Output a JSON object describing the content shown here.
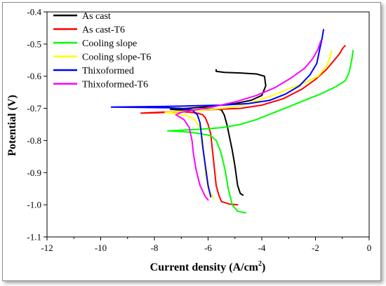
{
  "chart_data": {
    "type": "line",
    "title": "",
    "xlabel": "Current density (A/cm",
    "xlabel_sup": "2",
    "xlabel_close": ")",
    "ylabel": "Potential (V)",
    "xlim": [
      -12,
      0
    ],
    "ylim": [
      -1.1,
      -0.4
    ],
    "xticks": [
      -12,
      -10,
      -8,
      -6,
      -4,
      -2,
      0
    ],
    "xtick_labels": [
      "-12",
      "-10",
      "-8",
      "-6",
      "-4",
      "-2",
      "0"
    ],
    "yticks": [
      -1.1,
      -1.0,
      -0.9,
      -0.8,
      -0.7,
      -0.6,
      -0.5,
      -0.4
    ],
    "ytick_labels": [
      "-1.1",
      "-1.0",
      "-0.9",
      "-0.8",
      "-0.7",
      "-0.6",
      "-0.5",
      "-0.4"
    ],
    "grid": false,
    "legend_position": "top-left",
    "series": [
      {
        "name": "As cast",
        "color": "#000000",
        "x": [
          -4.7,
          -4.8,
          -4.9,
          -5.0,
          -5.1,
          -5.2,
          -5.3,
          -5.4,
          -5.5,
          -5.6,
          -5.8,
          -6.0,
          -6.3,
          -6.6,
          -7.0,
          -7.4,
          -6.8,
          -6.0,
          -5.0,
          -4.4,
          -4.0,
          -3.85,
          -3.9,
          -4.2,
          -4.8,
          -5.4,
          -5.7,
          -5.7
        ],
        "y": [
          -0.97,
          -0.965,
          -0.94,
          -0.88,
          -0.83,
          -0.79,
          -0.75,
          -0.72,
          -0.705,
          -0.703,
          -0.702,
          -0.703,
          -0.705,
          -0.705,
          -0.705,
          -0.703,
          -0.7,
          -0.695,
          -0.685,
          -0.675,
          -0.66,
          -0.63,
          -0.6,
          -0.593,
          -0.59,
          -0.588,
          -0.585,
          -0.58
        ]
      },
      {
        "name": "As cast-T6",
        "color": "#ff0000",
        "x": [
          -4.9,
          -5.2,
          -5.5,
          -5.6,
          -5.7,
          -5.75,
          -5.8,
          -5.85,
          -5.9,
          -6.0,
          -6.1,
          -6.2,
          -6.4,
          -6.7,
          -7.0,
          -7.5,
          -8.0,
          -8.5,
          -8.0,
          -7.3,
          -6.5,
          -5.6,
          -4.8,
          -4.0,
          -3.2,
          -2.5,
          -2.0,
          -1.6,
          -1.3,
          -1.1,
          -1.0,
          -0.9
        ],
        "y": [
          -1.0,
          -0.998,
          -0.99,
          -0.97,
          -0.94,
          -0.9,
          -0.86,
          -0.82,
          -0.78,
          -0.75,
          -0.73,
          -0.72,
          -0.715,
          -0.712,
          -0.71,
          -0.712,
          -0.714,
          -0.715,
          -0.713,
          -0.71,
          -0.707,
          -0.703,
          -0.7,
          -0.69,
          -0.67,
          -0.64,
          -0.61,
          -0.58,
          -0.55,
          -0.53,
          -0.515,
          -0.505
        ]
      },
      {
        "name": "Cooling slope",
        "color": "#00ff00",
        "x": [
          -4.6,
          -4.9,
          -5.1,
          -5.25,
          -5.35,
          -5.45,
          -5.55,
          -5.7,
          -5.9,
          -6.2,
          -6.6,
          -7.0,
          -7.5,
          -7.0,
          -6.3,
          -5.5,
          -4.8,
          -4.2,
          -3.6,
          -3.0,
          -2.4,
          -1.8,
          -1.3,
          -0.9,
          -0.75,
          -0.65,
          -0.6
        ],
        "y": [
          -1.025,
          -1.02,
          -1.0,
          -0.95,
          -0.9,
          -0.86,
          -0.83,
          -0.8,
          -0.785,
          -0.78,
          -0.775,
          -0.772,
          -0.77,
          -0.768,
          -0.765,
          -0.76,
          -0.75,
          -0.735,
          -0.715,
          -0.695,
          -0.675,
          -0.655,
          -0.635,
          -0.615,
          -0.59,
          -0.55,
          -0.52
        ]
      },
      {
        "name": "Cooling slope-T6",
        "color": "#ffff00",
        "x": [
          -5.8,
          -6.0,
          -6.1,
          -6.15,
          -6.2,
          -6.3,
          -6.5,
          -6.8,
          -7.2,
          -7.6,
          -7.2,
          -6.6,
          -5.8,
          -5.0,
          -4.3,
          -3.6,
          -3.0,
          -2.4,
          -1.9,
          -1.6,
          -1.45,
          -1.4
        ],
        "y": [
          -0.98,
          -0.95,
          -0.9,
          -0.85,
          -0.8,
          -0.76,
          -0.735,
          -0.722,
          -0.717,
          -0.712,
          -0.71,
          -0.708,
          -0.703,
          -0.695,
          -0.68,
          -0.66,
          -0.64,
          -0.62,
          -0.6,
          -0.57,
          -0.54,
          -0.52
        ]
      },
      {
        "name": "Thixoformed",
        "color": "#0000ff",
        "x": [
          -5.9,
          -6.0,
          -6.1,
          -6.2,
          -6.25,
          -6.3,
          -6.4,
          -6.6,
          -7.0,
          -7.5,
          -8.5,
          -9.6,
          -8.5,
          -7.5,
          -6.5,
          -5.5,
          -4.5,
          -3.7,
          -3.1,
          -2.6,
          -2.2,
          -1.95,
          -1.85,
          -1.75,
          -1.7
        ],
        "y": [
          -0.975,
          -0.94,
          -0.88,
          -0.82,
          -0.78,
          -0.745,
          -0.72,
          -0.705,
          -0.7,
          -0.698,
          -0.697,
          -0.696,
          -0.695,
          -0.694,
          -0.692,
          -0.69,
          -0.685,
          -0.675,
          -0.655,
          -0.63,
          -0.595,
          -0.56,
          -0.52,
          -0.48,
          -0.455
        ]
      },
      {
        "name": "Thixoformed-T6",
        "color": "#ff00ff",
        "x": [
          -6.0,
          -6.1,
          -6.3,
          -6.45,
          -6.55,
          -6.6,
          -6.7,
          -6.9,
          -7.2,
          -7.0,
          -6.5,
          -5.8,
          -5.0,
          -4.2,
          -3.5,
          -2.9,
          -2.4,
          -2.1,
          -1.9,
          -1.8
        ],
        "y": [
          -0.985,
          -0.975,
          -0.94,
          -0.89,
          -0.84,
          -0.8,
          -0.76,
          -0.735,
          -0.72,
          -0.712,
          -0.705,
          -0.695,
          -0.68,
          -0.66,
          -0.635,
          -0.605,
          -0.575,
          -0.545,
          -0.515,
          -0.49
        ]
      }
    ]
  }
}
